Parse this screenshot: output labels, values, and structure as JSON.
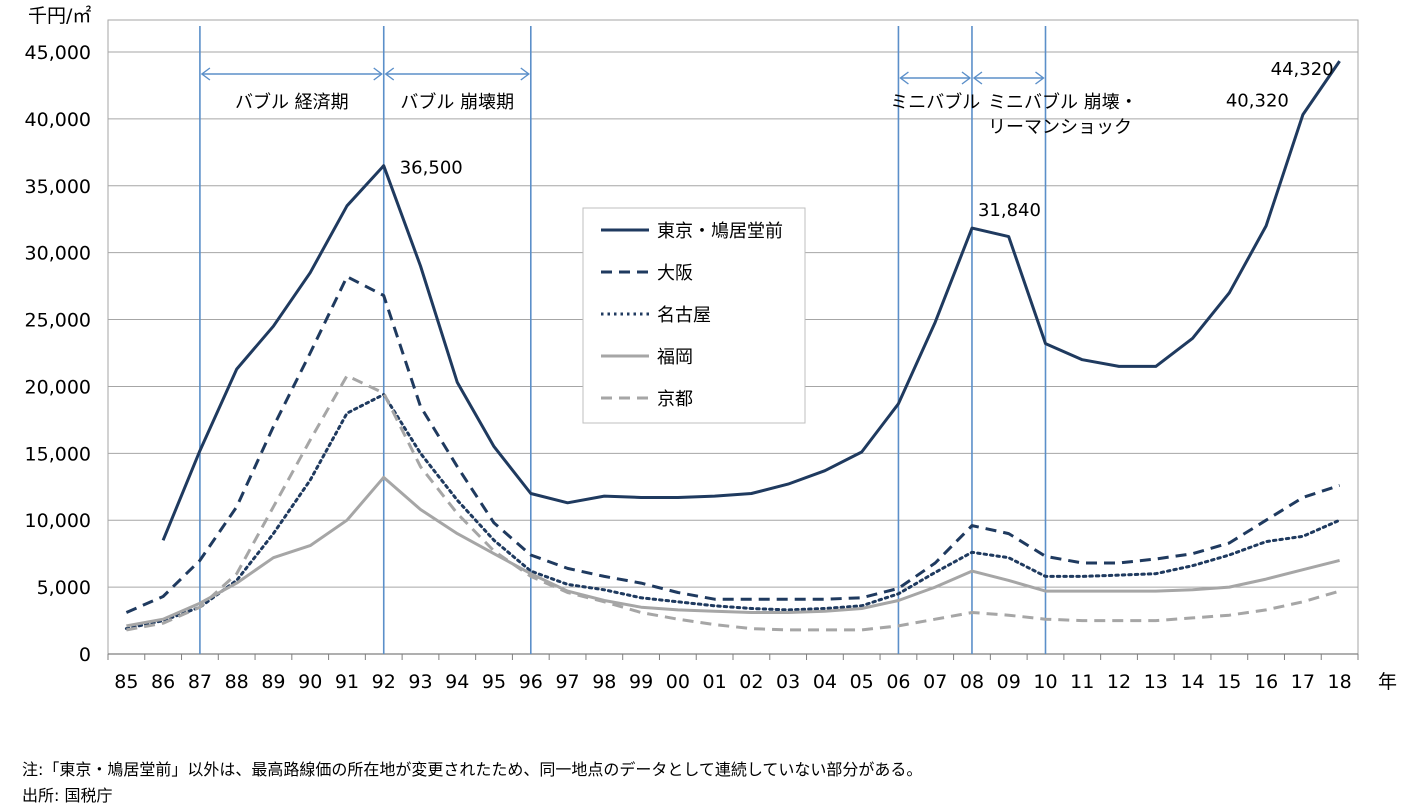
{
  "chart_data": {
    "type": "line",
    "unit_label": "千円/㎡",
    "x_unit_label": "年",
    "x": [
      "85",
      "86",
      "87",
      "88",
      "89",
      "90",
      "91",
      "92",
      "93",
      "94",
      "95",
      "96",
      "97",
      "98",
      "99",
      "00",
      "01",
      "02",
      "03",
      "04",
      "05",
      "06",
      "07",
      "08",
      "09",
      "10",
      "11",
      "12",
      "13",
      "14",
      "15",
      "16",
      "17",
      "18"
    ],
    "ylim": [
      0,
      45000
    ],
    "yticks": [
      0,
      5000,
      10000,
      15000,
      20000,
      25000,
      30000,
      35000,
      40000,
      45000
    ],
    "ytick_labels": [
      "0",
      "5,000",
      "10,000",
      "15,000",
      "20,000",
      "25,000",
      "30,000",
      "35,000",
      "40,000",
      "45,000"
    ],
    "grid": "horizontal",
    "legend_position": "center",
    "series": [
      {
        "name": "東京・鳩居堂前",
        "style": "solid",
        "color": "#1f3a5f",
        "values": [
          null,
          8500,
          15200,
          21300,
          24500,
          28500,
          33500,
          36500,
          29000,
          20300,
          15500,
          12000,
          11300,
          11800,
          11700,
          11700,
          11800,
          12000,
          12700,
          13700,
          15100,
          18700,
          24800,
          31840,
          31200,
          23200,
          22000,
          21500,
          21500,
          23600,
          27000,
          32000,
          40320,
          44320
        ]
      },
      {
        "name": "大阪",
        "style": "dashed",
        "color": "#1f3a5f",
        "values": [
          3100,
          4300,
          7000,
          11000,
          17000,
          22500,
          28200,
          26800,
          18500,
          14000,
          9800,
          7400,
          6400,
          5800,
          5300,
          4600,
          4100,
          4100,
          4100,
          4100,
          4200,
          4900,
          6800,
          9600,
          9000,
          7300,
          6800,
          6800,
          7100,
          7500,
          8300,
          10000,
          11700,
          12600
        ]
      },
      {
        "name": "名古屋",
        "style": "dotted",
        "color": "#1f3a5f",
        "values": [
          1900,
          2500,
          3500,
          5500,
          9000,
          13000,
          18000,
          19400,
          15000,
          11500,
          8500,
          6200,
          5200,
          4800,
          4200,
          3900,
          3600,
          3400,
          3300,
          3400,
          3600,
          4500,
          6100,
          7600,
          7200,
          5800,
          5800,
          5900,
          6000,
          6600,
          7400,
          8400,
          8800,
          10000
        ]
      },
      {
        "name": "福岡",
        "style": "solid",
        "color": "#a6a6a6",
        "values": [
          2100,
          2600,
          3800,
          5300,
          7200,
          8100,
          10000,
          13200,
          10800,
          9000,
          7500,
          6000,
          4700,
          4000,
          3500,
          3300,
          3200,
          3100,
          3100,
          3200,
          3400,
          4000,
          5000,
          6200,
          5500,
          4700,
          4700,
          4700,
          4700,
          4800,
          5000,
          5600,
          6300,
          7000
        ]
      },
      {
        "name": "京都",
        "style": "dashed",
        "color": "#a6a6a6",
        "values": [
          1800,
          2300,
          3500,
          6000,
          11000,
          16000,
          20800,
          19500,
          14000,
          10500,
          7700,
          5800,
          4600,
          3900,
          3100,
          2600,
          2200,
          1900,
          1800,
          1800,
          1800,
          2100,
          2600,
          3100,
          2900,
          2600,
          2500,
          2500,
          2500,
          2700,
          2900,
          3300,
          3900,
          4700
        ]
      }
    ],
    "data_labels": [
      {
        "series": "東京・鳩居堂前",
        "x": "92",
        "text": "36,500"
      },
      {
        "series": "東京・鳩居堂前",
        "x": "08",
        "text": "31,840"
      },
      {
        "series": "東京・鳩居堂前",
        "x": "17",
        "text": "40,320"
      },
      {
        "series": "東京・鳩居堂前",
        "x": "18",
        "text": "44,320"
      }
    ],
    "vertical_markers": [
      "87",
      "92",
      "96",
      "06",
      "08",
      "10"
    ],
    "periods": [
      {
        "label": "バブル 経済期",
        "from": "87",
        "to": "92"
      },
      {
        "label": "バブル 崩壊期",
        "from": "92",
        "to": "96"
      },
      {
        "label": "ミニバブル",
        "from": "06",
        "to": "08"
      },
      {
        "label": "ミニバブル 崩壊・リーマンショック",
        "label_lines": [
          "ミニバブル 崩壊・",
          "リーマンショック"
        ],
        "from": "08",
        "to": "10"
      }
    ],
    "colors": {
      "marker": "#5b8fc9",
      "grid": "#a6a6a6",
      "navy": "#1f3a5f",
      "gray": "#a6a6a6"
    }
  },
  "notes": {
    "note": "注:「東京・鳩居堂前」以外は、最高路線価の所在地が変更されたため、同一地点のデータとして連続していない部分がある。",
    "source": "出所: 国税庁"
  }
}
